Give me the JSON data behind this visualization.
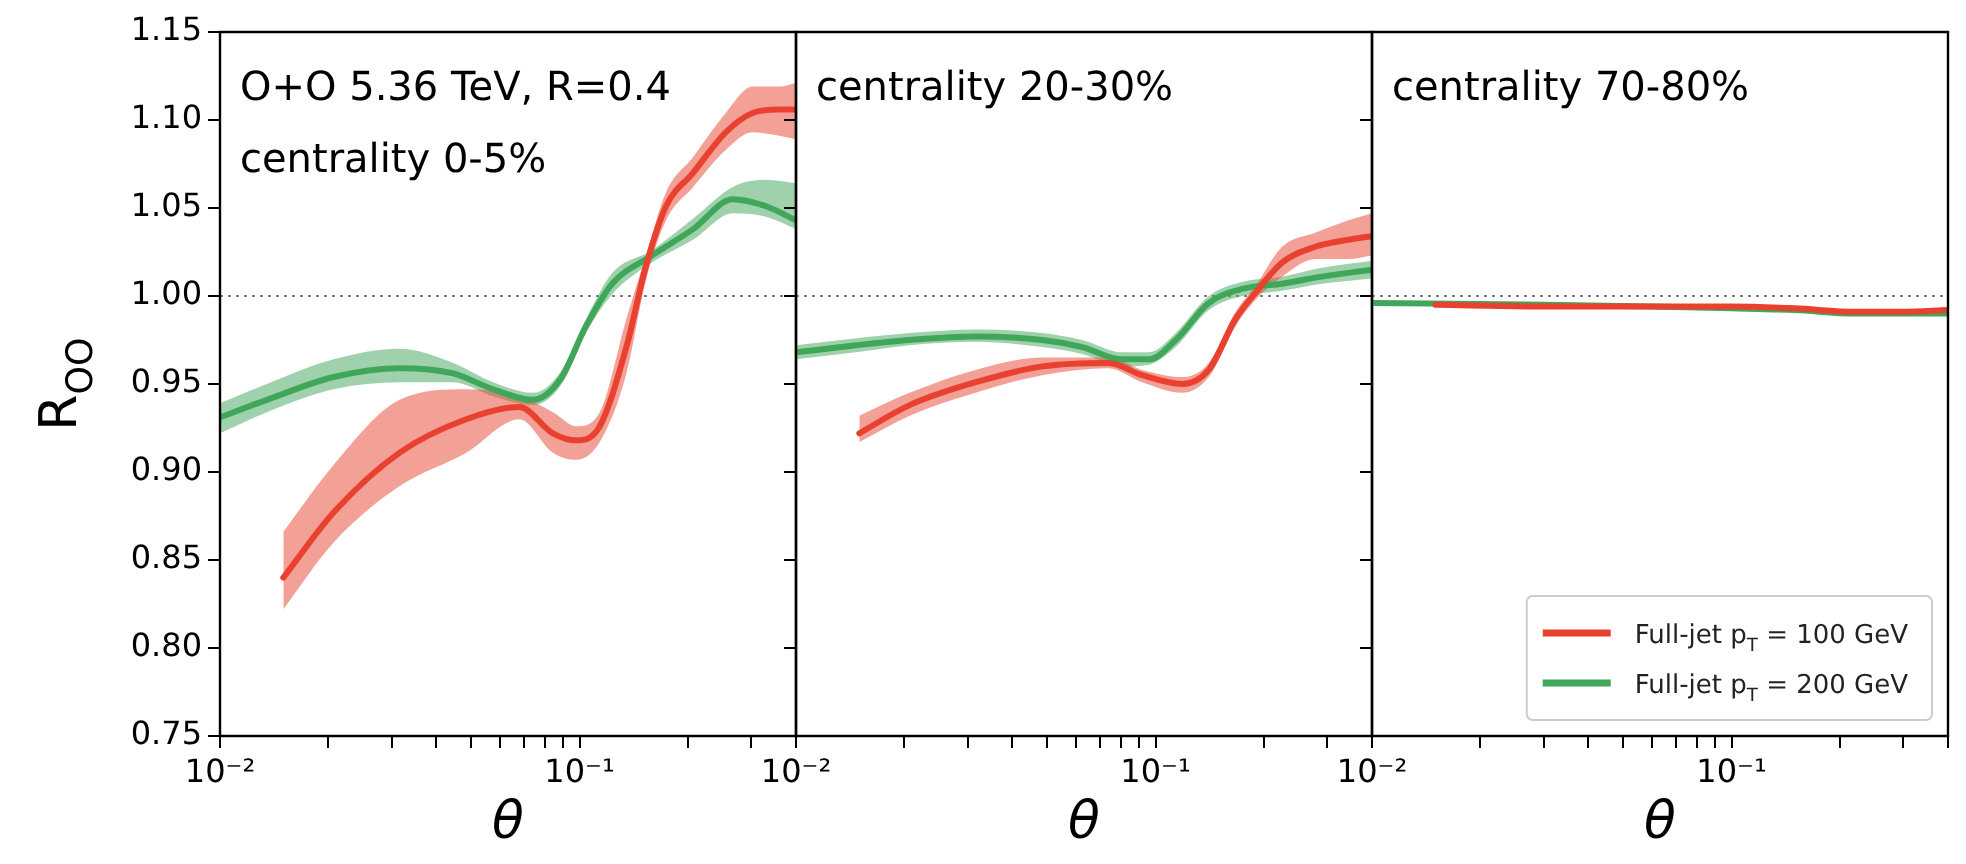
{
  "chart_data": [
    {
      "type": "line",
      "ylabel": "R$_{OO}$",
      "xlabel": "θ",
      "log": "x",
      "grid": false,
      "marker": "none",
      "line_style": "solid",
      "annotations": [
        "O+O 5.36 TeV, R=0.4",
        "centrality 0-5%"
      ],
      "xlim": [
        0.01,
        0.4
      ],
      "xticks": [
        {
          "value": 0.01,
          "label": "10⁻²"
        },
        {
          "value": 0.02,
          "label": null
        },
        {
          "value": 0.03,
          "label": null
        },
        {
          "value": 0.04,
          "label": null
        },
        {
          "value": 0.05,
          "label": null
        },
        {
          "value": 0.06,
          "label": null
        },
        {
          "value": 0.07,
          "label": null
        },
        {
          "value": 0.08,
          "label": null
        },
        {
          "value": 0.09,
          "label": null
        },
        {
          "value": 0.1,
          "label": "10⁻¹"
        },
        {
          "value": 0.2,
          "label": null
        },
        {
          "value": 0.3,
          "label": null
        },
        {
          "value": 0.4,
          "label": null
        }
      ],
      "ylim": [
        0.75,
        1.15
      ],
      "yticks": [
        {
          "value": 0.75,
          "label": "0.75"
        },
        {
          "value": 0.8,
          "label": "0.80"
        },
        {
          "value": 0.85,
          "label": "0.85"
        },
        {
          "value": 0.9,
          "label": "0.90"
        },
        {
          "value": 0.95,
          "label": "0.95"
        },
        {
          "value": 1.0,
          "label": "1.00"
        },
        {
          "value": 1.05,
          "label": "1.05"
        },
        {
          "value": 1.1,
          "label": "1.10"
        },
        {
          "value": 1.15,
          "label": "1.15"
        }
      ],
      "ref_lines": [
        {
          "axis": "y",
          "value": 1,
          "color": "#808080",
          "line_style": "dotted"
        }
      ],
      "series": [
        {
          "color": "#e8412f",
          "x": [
            0.015,
            0.0207,
            0.0316,
            0.0484,
            0.068,
            0.0843,
            0.098,
            0.1138,
            0.135,
            0.153,
            0.174,
            0.207,
            0.255,
            0.303,
            0.36,
            0.4
          ],
          "values": [
            0.84,
            0.877,
            0.911,
            0.93,
            0.937,
            0.922,
            0.918,
            0.926,
            0.971,
            1.017,
            1.051,
            1.07,
            1.093,
            1.104,
            1.106,
            1.106
          ],
          "lower": [
            0.822,
            0.86,
            0.892,
            0.911,
            0.93,
            0.911,
            0.907,
            0.917,
            0.956,
            1.009,
            1.043,
            1.062,
            1.083,
            1.093,
            1.091,
            1.089
          ],
          "upper": [
            0.866,
            0.904,
            0.941,
            0.947,
            0.943,
            0.934,
            0.926,
            0.934,
            0.987,
            1.023,
            1.059,
            1.079,
            1.104,
            1.119,
            1.119,
            1.121
          ]
        },
        {
          "color": "#3fa65a",
          "x": [
            0.01,
            0.0135,
            0.0207,
            0.0316,
            0.0445,
            0.0575,
            0.0742,
            0.0886,
            0.1043,
            0.1233,
            0.159,
            0.207,
            0.267,
            0.33,
            0.4
          ],
          "values": [
            0.931,
            0.941,
            0.954,
            0.959,
            0.956,
            0.947,
            0.941,
            0.953,
            0.983,
            1.007,
            1.023,
            1.038,
            1.055,
            1.051,
            1.043
          ],
          "lower": [
            0.922,
            0.934,
            0.947,
            0.951,
            0.951,
            0.943,
            0.938,
            0.949,
            0.979,
            1.001,
            1.019,
            1.032,
            1.047,
            1.045,
            1.038
          ],
          "upper": [
            0.939,
            0.95,
            0.964,
            0.97,
            0.962,
            0.951,
            0.945,
            0.957,
            0.987,
            1.013,
            1.026,
            1.044,
            1.062,
            1.066,
            1.064
          ]
        }
      ]
    },
    {
      "type": "line",
      "xlabel": "θ",
      "log": "x",
      "grid": false,
      "marker": "none",
      "line_style": "solid",
      "tick_labels": "x",
      "annotations": [
        "centrality 20-30%"
      ],
      "xlim": [
        0.01,
        0.4
      ],
      "xticks": [
        {
          "value": 0.01,
          "label": "10⁻²"
        },
        {
          "value": 0.02,
          "label": null
        },
        {
          "value": 0.03,
          "label": null
        },
        {
          "value": 0.04,
          "label": null
        },
        {
          "value": 0.05,
          "label": null
        },
        {
          "value": 0.06,
          "label": null
        },
        {
          "value": 0.07,
          "label": null
        },
        {
          "value": 0.08,
          "label": null
        },
        {
          "value": 0.09,
          "label": null
        },
        {
          "value": 0.1,
          "label": "10⁻¹"
        },
        {
          "value": 0.2,
          "label": null
        },
        {
          "value": 0.3,
          "label": null
        },
        {
          "value": 0.4,
          "label": null
        }
      ],
      "ylim": [
        0.75,
        1.15
      ],
      "yticks": [
        0.75,
        0.8,
        0.85,
        0.9,
        0.95,
        1.0,
        1.05,
        1.1,
        1.15
      ],
      "ref_lines": [
        {
          "axis": "y",
          "value": 1,
          "color": "#808080",
          "line_style": "dotted"
        }
      ],
      "series": [
        {
          "color": "#e8412f",
          "x": [
            0.015,
            0.0207,
            0.0316,
            0.0484,
            0.074,
            0.0918,
            0.1186,
            0.1406,
            0.167,
            0.19,
            0.225,
            0.278,
            0.344,
            0.4
          ],
          "values": [
            0.922,
            0.938,
            0.951,
            0.96,
            0.962,
            0.955,
            0.95,
            0.958,
            0.987,
            1.002,
            1.019,
            1.028,
            1.032,
            1.034
          ],
          "lower": [
            0.917,
            0.932,
            0.945,
            0.955,
            0.959,
            0.951,
            0.945,
            0.954,
            0.983,
            0.998,
            1.011,
            1.021,
            1.021,
            1.023
          ],
          "upper": [
            0.932,
            0.945,
            0.958,
            0.965,
            0.965,
            0.958,
            0.954,
            0.962,
            0.991,
            1.006,
            1.028,
            1.036,
            1.043,
            1.047
          ]
        },
        {
          "color": "#3fa65a",
          "x": [
            0.01,
            0.0147,
            0.0207,
            0.0316,
            0.0484,
            0.0625,
            0.0806,
            0.0958,
            0.1138,
            0.1406,
            0.174,
            0.225,
            0.29,
            0.4
          ],
          "values": [
            0.968,
            0.972,
            0.975,
            0.977,
            0.975,
            0.971,
            0.964,
            0.964,
            0.975,
            0.996,
            1.004,
            1.007,
            1.011,
            1.015
          ],
          "lower": [
            0.964,
            0.968,
            0.972,
            0.974,
            0.971,
            0.967,
            0.96,
            0.961,
            0.971,
            0.992,
            1.0,
            1.003,
            1.007,
            1.01
          ],
          "upper": [
            0.972,
            0.976,
            0.979,
            0.981,
            0.979,
            0.975,
            0.968,
            0.968,
            0.979,
            1.0,
            1.008,
            1.011,
            1.016,
            1.02
          ]
        }
      ]
    },
    {
      "type": "line",
      "xlabel": "θ",
      "log": "x",
      "grid": false,
      "marker": "none",
      "line_style": "solid",
      "tick_labels": "x",
      "legend": "bottom right",
      "annotations": [
        "centrality 70-80%"
      ],
      "xlim": [
        0.01,
        0.4
      ],
      "xticks": [
        {
          "value": 0.01,
          "label": "10⁻²"
        },
        {
          "value": 0.02,
          "label": null
        },
        {
          "value": 0.03,
          "label": null
        },
        {
          "value": 0.04,
          "label": null
        },
        {
          "value": 0.05,
          "label": null
        },
        {
          "value": 0.06,
          "label": null
        },
        {
          "value": 0.07,
          "label": null
        },
        {
          "value": 0.08,
          "label": null
        },
        {
          "value": 0.09,
          "label": null
        },
        {
          "value": 0.1,
          "label": "10⁻¹"
        },
        {
          "value": 0.2,
          "label": null
        },
        {
          "value": 0.3,
          "label": null
        },
        {
          "value": 0.4,
          "label": null
        }
      ],
      "ylim": [
        0.75,
        1.15
      ],
      "yticks": [
        0.75,
        0.8,
        0.85,
        0.9,
        0.95,
        1.0,
        1.05,
        1.1,
        1.15
      ],
      "ref_lines": [
        {
          "axis": "y",
          "value": 1,
          "color": "#808080",
          "line_style": "dotted"
        }
      ],
      "series": [
        {
          "name": "Full-jet p$_{T}$ = 100 GeV",
          "color": "#e8412f",
          "x": [
            0.015,
            0.03,
            0.06,
            0.1,
            0.15,
            0.22,
            0.3,
            0.4
          ],
          "values": [
            0.995,
            0.994,
            0.994,
            0.994,
            0.993,
            0.991,
            0.991,
            0.992
          ]
        },
        {
          "name": "Full-jet p$_{T}$ = 200 GeV",
          "color": "#3fa65a",
          "x": [
            0.01,
            0.03,
            0.06,
            0.1,
            0.15,
            0.22,
            0.3,
            0.4
          ],
          "values": [
            0.996,
            0.995,
            0.994,
            0.993,
            0.992,
            0.99,
            0.99,
            0.99
          ]
        }
      ]
    }
  ]
}
